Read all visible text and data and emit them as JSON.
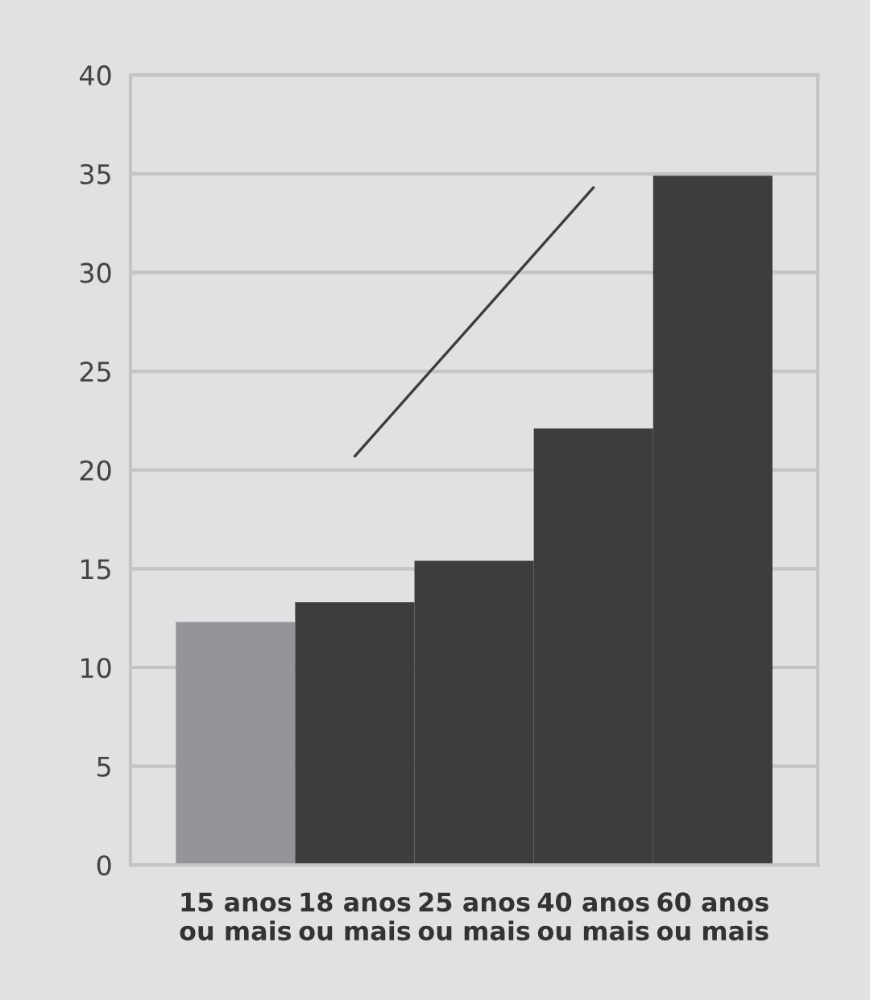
{
  "chart_data": {
    "type": "bar",
    "categories": [
      "15 anos\nou mais",
      "18 anos\nou mais",
      "25 anos\nou mais",
      "40 anos\nou mais",
      "60 anos\nou mais"
    ],
    "series": [
      {
        "values": [
          12.3,
          13.3,
          15.4,
          22.1,
          34.9
        ],
        "colors": [
          "#959599",
          "#3d3d3d",
          "#3d3d3d",
          "#3d3d3d",
          "#3d3d3d"
        ]
      },
      {
        "type": "line",
        "values": [
          null,
          20.7,
          27.5,
          34.3,
          null
        ],
        "color": "#3d3d3d"
      }
    ],
    "ylim": [
      0,
      40
    ],
    "yticks": [
      0,
      5,
      10,
      15,
      20,
      25,
      30,
      35,
      40
    ],
    "grid": "y",
    "legend": false
  }
}
